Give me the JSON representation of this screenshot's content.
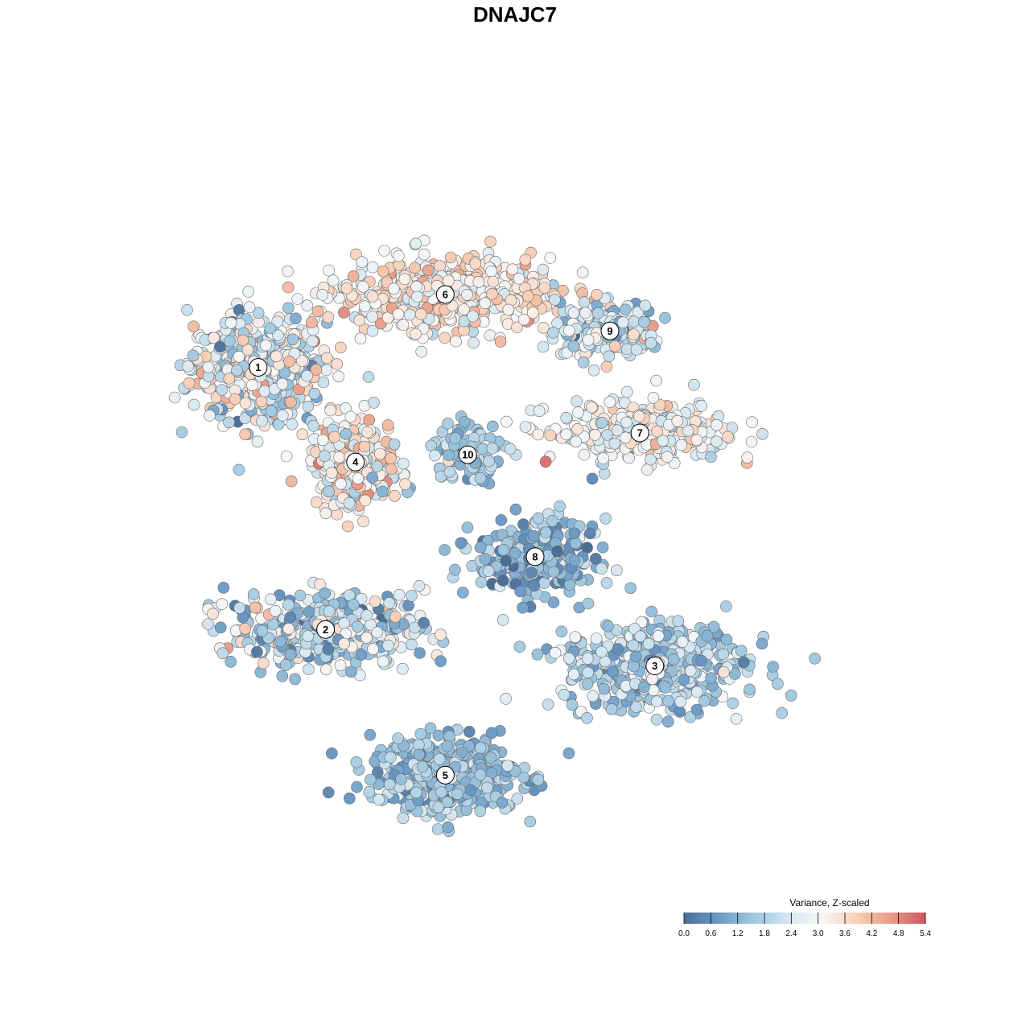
{
  "chart_data": {
    "type": "scatter",
    "title": "DNAJC7",
    "xlabel": "",
    "ylabel": "",
    "grid": false,
    "xlim": [
      0,
      100
    ],
    "ylim": [
      0,
      100
    ],
    "legend": {
      "title": "Variance, Z-scaled",
      "position": "bottom-right",
      "range": [
        0.0,
        5.4
      ],
      "ticks": [
        "0.0",
        "0.6",
        "1.2",
        "1.8",
        "2.4",
        "3.0",
        "3.6",
        "4.2",
        "4.8",
        "5.4"
      ],
      "colors": [
        "#4a6f96",
        "#6c9ac6",
        "#9dc6de",
        "#d4e6f1",
        "#f7f7f7",
        "#f8cfb7",
        "#e99b86",
        "#cf5562"
      ]
    },
    "clusters": [
      {
        "label": "1",
        "x": 13,
        "y": 70,
        "sx": 9,
        "sy": 7,
        "n": 520,
        "value": 2.5,
        "spread": 0.9
      },
      {
        "label": "6",
        "x": 38,
        "y": 80,
        "sx": 14,
        "sy": 5,
        "n": 560,
        "value": 3.2,
        "spread": 0.6
      },
      {
        "label": "9",
        "x": 60,
        "y": 75,
        "sx": 7,
        "sy": 4,
        "n": 190,
        "value": 2.4,
        "spread": 0.8
      },
      {
        "label": "7",
        "x": 64,
        "y": 61,
        "sx": 12,
        "sy": 4,
        "n": 300,
        "value": 2.9,
        "spread": 0.6
      },
      {
        "label": "4",
        "x": 26,
        "y": 57,
        "sx": 6,
        "sy": 6,
        "n": 300,
        "value": 3.1,
        "spread": 0.8
      },
      {
        "label": "10",
        "x": 41,
        "y": 58,
        "sx": 5,
        "sy": 4,
        "n": 110,
        "value": 1.6,
        "spread": 0.6
      },
      {
        "label": "8",
        "x": 50,
        "y": 44,
        "sx": 8,
        "sy": 5,
        "n": 280,
        "value": 1.2,
        "spread": 0.7
      },
      {
        "label": "2",
        "x": 22,
        "y": 34,
        "sx": 13,
        "sy": 5,
        "n": 400,
        "value": 2.0,
        "spread": 1.0
      },
      {
        "label": "3",
        "x": 66,
        "y": 29,
        "sx": 12,
        "sy": 6,
        "n": 520,
        "value": 1.8,
        "spread": 0.6
      },
      {
        "label": "5",
        "x": 38,
        "y": 14,
        "sx": 10,
        "sy": 5,
        "n": 520,
        "value": 1.5,
        "spread": 0.5
      }
    ]
  }
}
